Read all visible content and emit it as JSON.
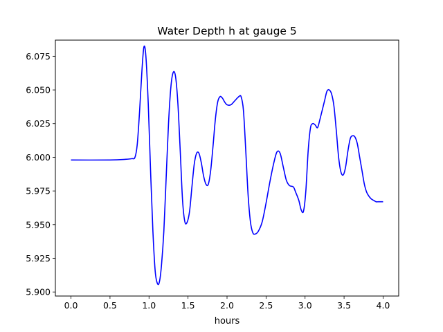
{
  "chart_data": {
    "type": "line",
    "title": "Water Depth h at gauge 5",
    "xlabel": "hours",
    "ylabel": "",
    "xlim": [
      -0.2,
      4.2
    ],
    "ylim": [
      5.897,
      6.087
    ],
    "xticks": [
      {
        "value": 0.0,
        "label": "0.0"
      },
      {
        "value": 0.5,
        "label": "0.5"
      },
      {
        "value": 1.0,
        "label": "1.0"
      },
      {
        "value": 1.5,
        "label": "1.5"
      },
      {
        "value": 2.0,
        "label": "2.0"
      },
      {
        "value": 2.5,
        "label": "2.5"
      },
      {
        "value": 3.0,
        "label": "3.0"
      },
      {
        "value": 3.5,
        "label": "3.5"
      },
      {
        "value": 4.0,
        "label": "4.0"
      }
    ],
    "yticks": [
      {
        "value": 5.9,
        "label": "5.900"
      },
      {
        "value": 5.925,
        "label": "5.925"
      },
      {
        "value": 5.95,
        "label": "5.950"
      },
      {
        "value": 5.975,
        "label": "5.975"
      },
      {
        "value": 6.0,
        "label": "6.000"
      },
      {
        "value": 6.025,
        "label": "6.025"
      },
      {
        "value": 6.05,
        "label": "6.050"
      },
      {
        "value": 6.075,
        "label": "6.075"
      }
    ],
    "grid": false,
    "legend": "none",
    "series": [
      {
        "color": "#0000ff",
        "x": [
          0.0,
          0.5,
          0.7,
          0.78,
          0.82,
          0.85,
          0.88,
          0.91,
          0.935,
          0.96,
          0.99,
          1.02,
          1.05,
          1.08,
          1.11,
          1.135,
          1.16,
          1.19,
          1.22,
          1.25,
          1.28,
          1.31,
          1.34,
          1.37,
          1.4,
          1.43,
          1.46,
          1.49,
          1.52,
          1.55,
          1.58,
          1.61,
          1.64,
          1.67,
          1.7,
          1.73,
          1.76,
          1.79,
          1.82,
          1.85,
          1.88,
          1.91,
          1.94,
          1.97,
          2.0,
          2.05,
          2.1,
          2.15,
          2.18,
          2.21,
          2.24,
          2.27,
          2.3,
          2.33,
          2.36,
          2.4,
          2.45,
          2.5,
          2.55,
          2.6,
          2.64,
          2.68,
          2.72,
          2.76,
          2.8,
          2.85,
          2.88,
          2.92,
          2.95,
          2.98,
          3.01,
          3.04,
          3.07,
          3.1,
          3.13,
          3.16,
          3.19,
          3.22,
          3.25,
          3.28,
          3.31,
          3.34,
          3.37,
          3.4,
          3.43,
          3.46,
          3.49,
          3.52,
          3.55,
          3.58,
          3.61,
          3.64,
          3.67,
          3.7,
          3.73,
          3.76,
          3.79,
          3.82,
          3.85,
          3.88,
          3.91,
          3.94,
          3.97,
          4.0
        ],
        "y": [
          5.998,
          5.998,
          5.9985,
          5.999,
          6.0,
          6.01,
          6.035,
          6.065,
          6.082,
          6.075,
          6.04,
          5.99,
          5.945,
          5.915,
          5.906,
          5.908,
          5.92,
          5.945,
          5.985,
          6.025,
          6.052,
          6.063,
          6.06,
          6.04,
          6.005,
          5.968,
          5.952,
          5.952,
          5.96,
          5.978,
          5.995,
          6.003,
          6.003,
          5.996,
          5.986,
          5.98,
          5.98,
          5.99,
          6.008,
          6.028,
          6.041,
          6.045,
          6.044,
          6.041,
          6.039,
          6.039,
          6.042,
          6.045,
          6.045,
          6.035,
          6.005,
          5.972,
          5.952,
          5.944,
          5.943,
          5.945,
          5.952,
          5.966,
          5.982,
          5.996,
          6.004,
          6.003,
          5.993,
          5.983,
          5.979,
          5.978,
          5.974,
          5.968,
          5.961,
          5.96,
          5.975,
          6.005,
          6.022,
          6.025,
          6.024,
          6.022,
          6.028,
          6.035,
          6.042,
          6.049,
          6.05,
          6.047,
          6.038,
          6.02,
          6.0,
          5.989,
          5.987,
          5.993,
          6.005,
          6.014,
          6.016,
          6.015,
          6.01,
          6.0,
          5.99,
          5.98,
          5.974,
          5.971,
          5.969,
          5.968,
          5.967,
          5.967,
          5.967,
          5.967
        ]
      }
    ]
  }
}
